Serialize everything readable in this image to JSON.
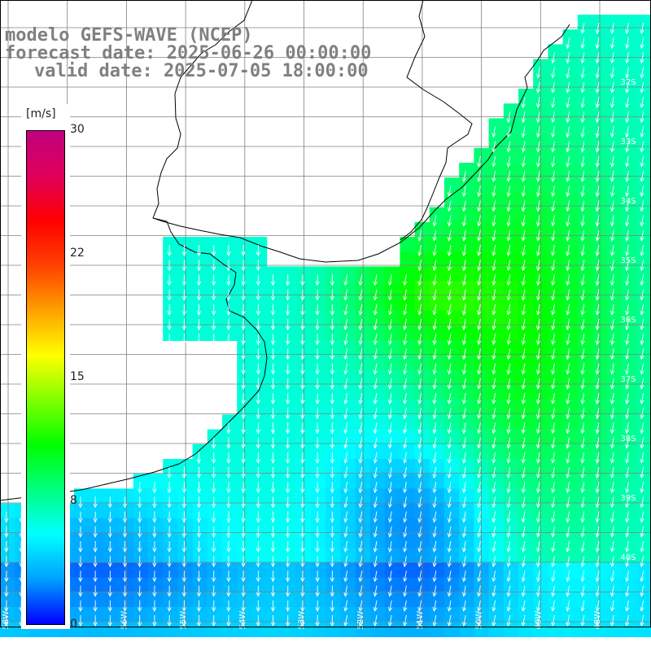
{
  "title": {
    "line1": "modelo GEFS-WAVE (NCEP)",
    "line2": "forecast date: 2025-06-26 00:00:00",
    "line3": "valid date: 2025-07-05 18:00:00"
  },
  "colorbar": {
    "unit": "[m/s]",
    "ticks": [
      "30",
      "22",
      "15",
      "8",
      "0"
    ],
    "tick_values": [
      30,
      22,
      15,
      8,
      0
    ],
    "range": [
      0,
      30
    ],
    "colors": [
      "#0000ff",
      "#00a0ff",
      "#00ffff",
      "#00ff80",
      "#00ff00",
      "#80ff00",
      "#ffff00",
      "#ffa000",
      "#ff4000",
      "#ff0000",
      "#e0005a",
      "#c0007f"
    ]
  },
  "grid_labels": {
    "lat": [
      "32S",
      "33S",
      "34S",
      "35S",
      "36S",
      "37S",
      "38S",
      "39S",
      "40S"
    ],
    "lon": [
      "58W",
      "57W",
      "56W",
      "55W",
      "54W",
      "53W",
      "52W",
      "51W",
      "50W",
      "49W",
      "48W"
    ]
  },
  "colors": {
    "land": "#ffffff",
    "grid": "#808080",
    "coast": "#000000",
    "arrow": "#ffffff",
    "title": "#808080"
  }
}
